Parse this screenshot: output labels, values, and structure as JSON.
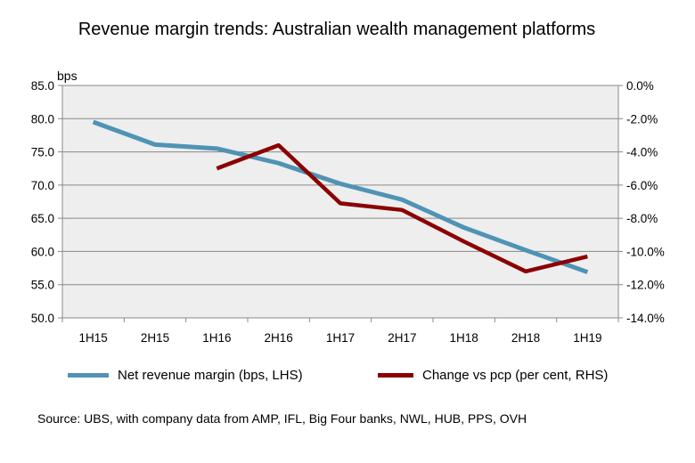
{
  "title": "Revenue margin trends: Australian wealth management platforms",
  "source": "Source: UBS, with company data from AMP, IFL, Big Four banks, NWL, HUB, PPS, OVH",
  "colors": {
    "series1": "#4F93B5",
    "series2": "#8B0000",
    "plot_bg": "#EEEEEE",
    "grid": "#888888"
  },
  "chart_data": {
    "type": "line",
    "categories": [
      "1H15",
      "2H15",
      "1H16",
      "2H16",
      "1H17",
      "2H17",
      "1H18",
      "2H18",
      "1H19"
    ],
    "left_axis": {
      "unit": "bps",
      "ylim": [
        50,
        85
      ],
      "ticks": [
        "50.0",
        "55.0",
        "60.0",
        "65.0",
        "70.0",
        "75.0",
        "80.0",
        "85.0"
      ]
    },
    "right_axis": {
      "ylim": [
        -14,
        0
      ],
      "ticks": [
        "-14.0%",
        "-12.0%",
        "-10.0%",
        "-8.0%",
        "-6.0%",
        "-4.0%",
        "-2.0%",
        "0.0%"
      ]
    },
    "grid": "horizontal",
    "legend_position": "bottom",
    "series": [
      {
        "name": "Net revenue margin (bps, LHS)",
        "axis": "left",
        "values": [
          79.5,
          76.1,
          75.5,
          73.3,
          70.2,
          67.8,
          63.6,
          60.2,
          56.9
        ]
      },
      {
        "name": "Change vs pcp (per cent, RHS)",
        "axis": "right",
        "values": [
          null,
          null,
          -5.0,
          -3.6,
          -7.1,
          -7.5,
          -9.4,
          -11.2,
          -10.3
        ]
      }
    ]
  }
}
